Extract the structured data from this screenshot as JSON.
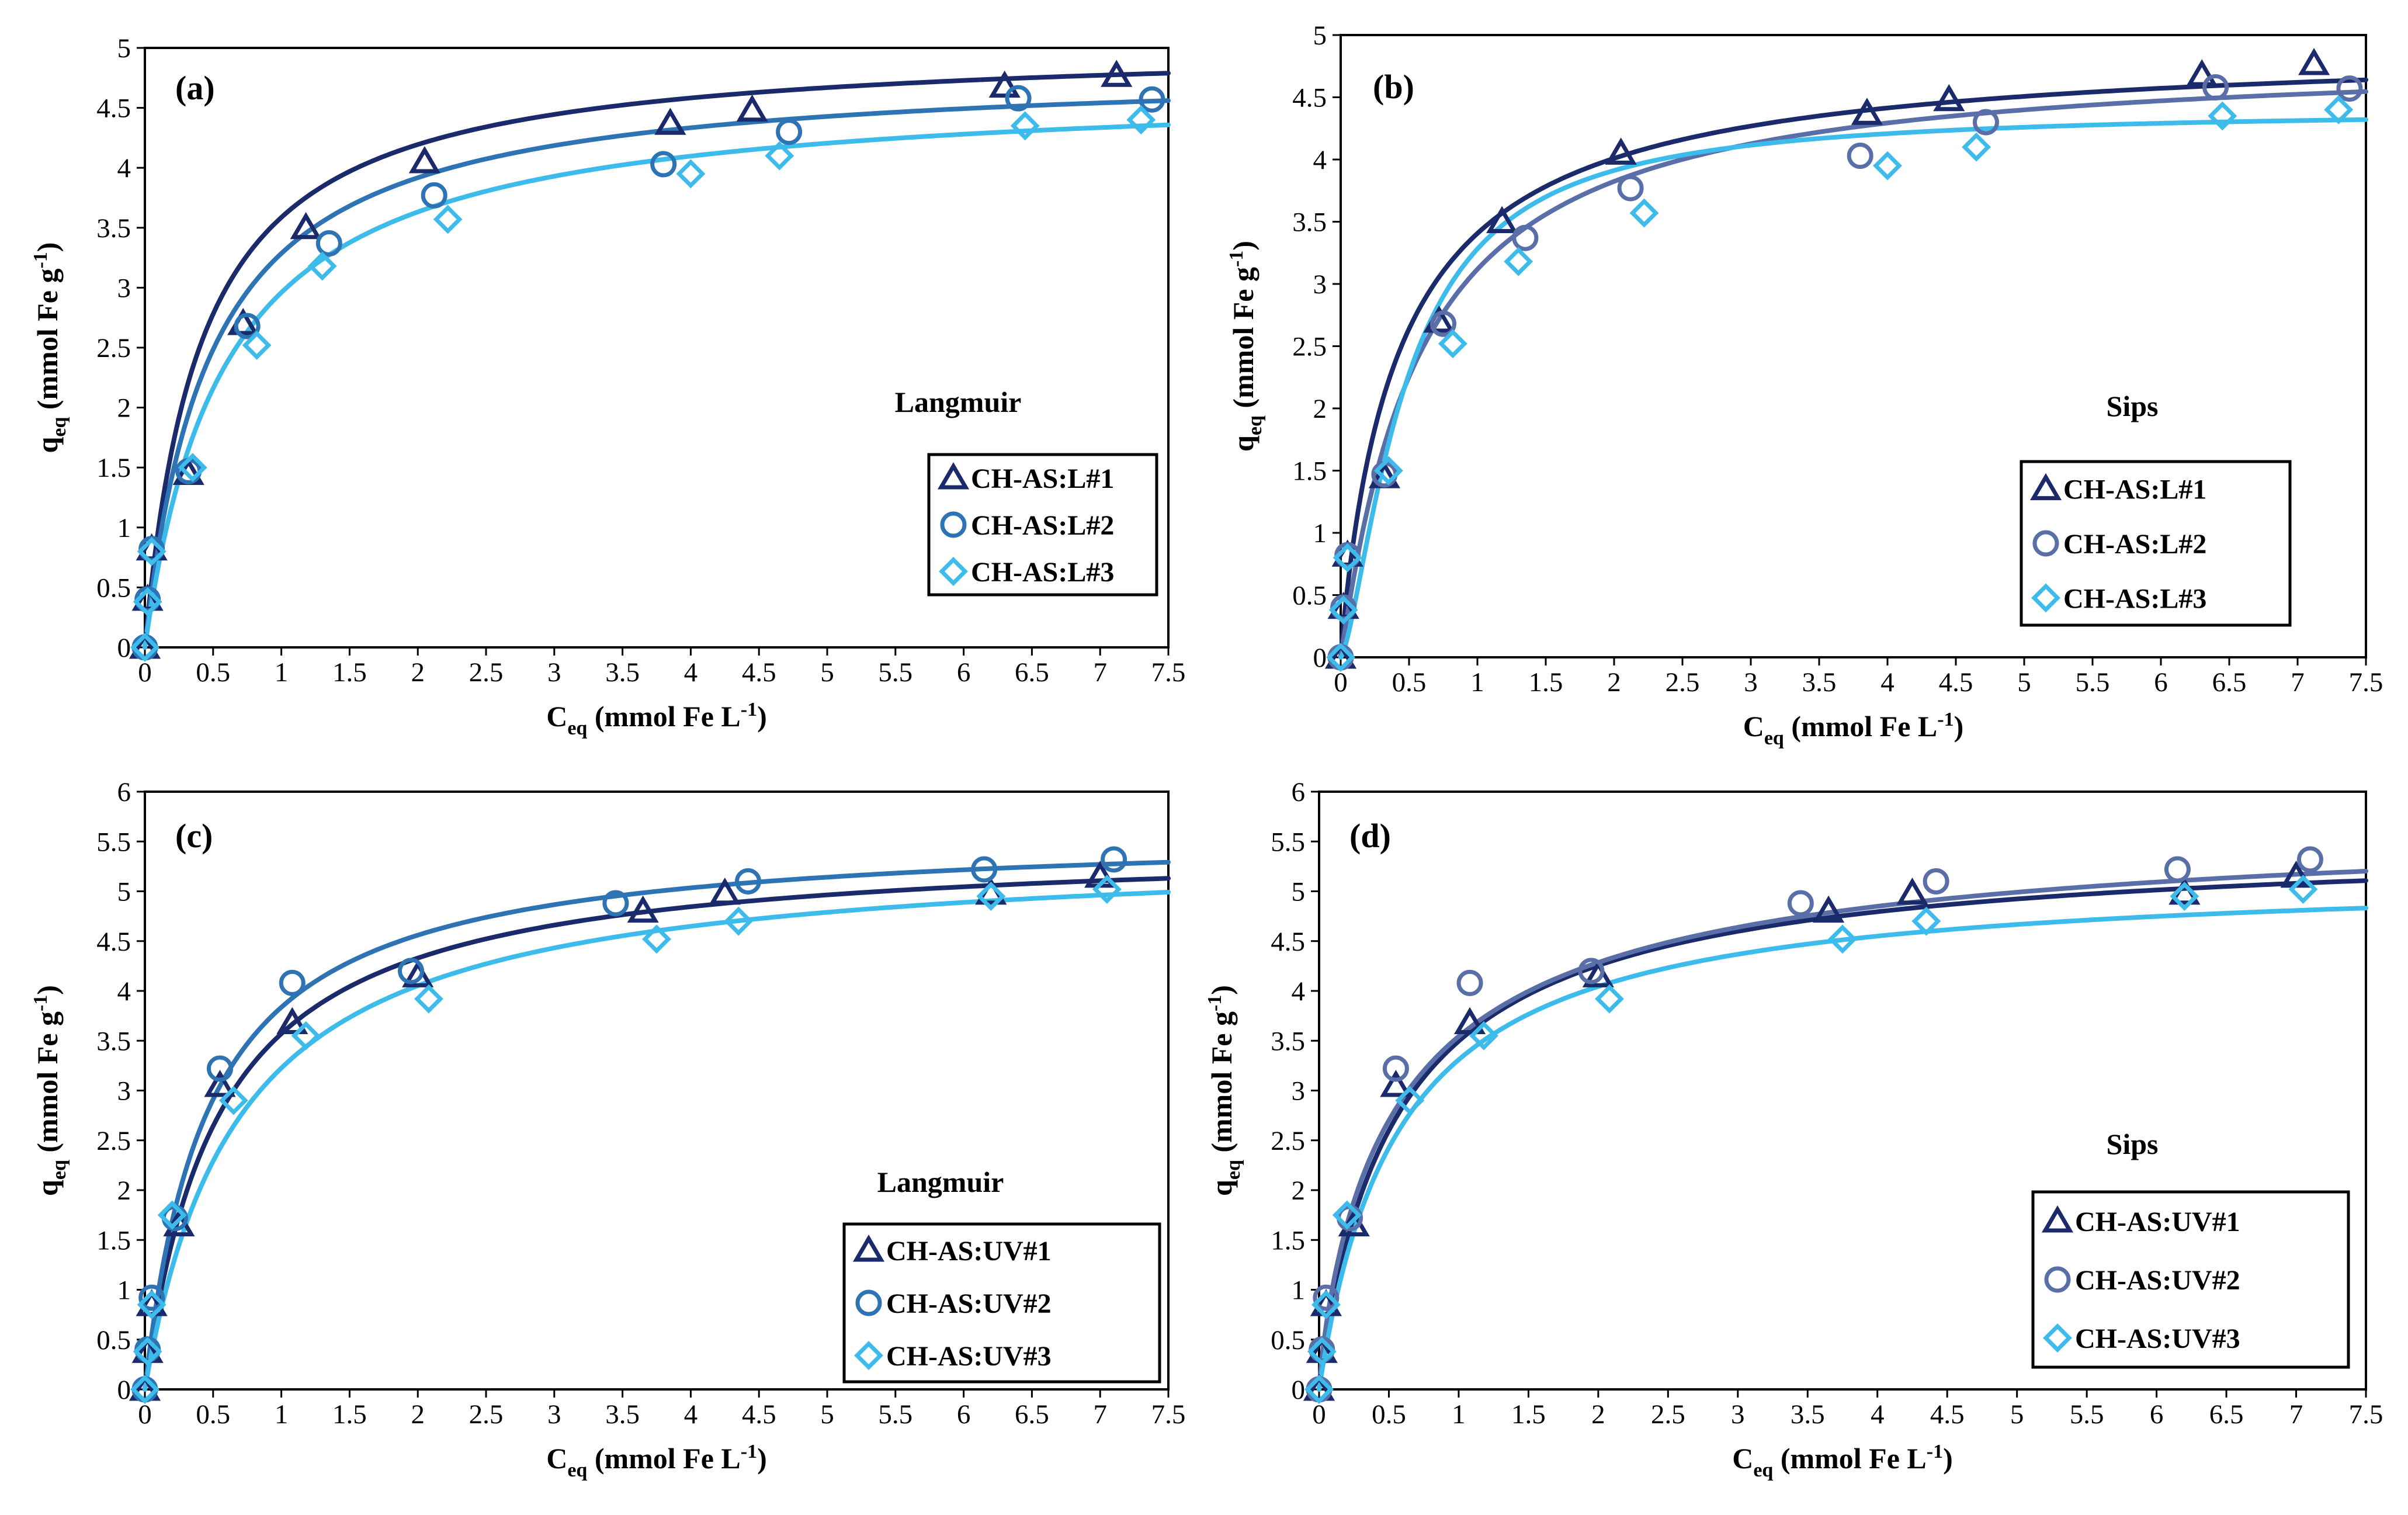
{
  "figure": {
    "colors": {
      "series1": "#1b2a6b",
      "series2": "#2e74b5",
      "series3": "#3dbcec",
      "axis": "#000000",
      "box": "#000000"
    }
  },
  "chart_data": [
    {
      "type": "scatter",
      "panel_label": "(a)",
      "model": "Langmuir",
      "title": "",
      "xlabel": "Ceq (mmol Fe L-1)",
      "xlabel_main": "C",
      "xlabel_sub": "eq",
      "xlabel_rest": " (mmol Fe L",
      "xlabel_sup": "-1",
      "xlabel_end": ")",
      "ylabel": "qeq (mmol Fe g-1)",
      "ylabel_main": "q",
      "ylabel_sub": "eq",
      "ylabel_rest": " (mmol Fe  g",
      "ylabel_sup": "-1",
      "ylabel_end": ")",
      "xlim": [
        0,
        7.5
      ],
      "ylim": [
        0,
        5
      ],
      "xticks": [
        0,
        0.5,
        1,
        1.5,
        2,
        2.5,
        3,
        3.5,
        4,
        4.5,
        5,
        5.5,
        6,
        6.5,
        7,
        7.5
      ],
      "yticks": [
        0,
        0.5,
        1,
        1.5,
        2,
        2.5,
        3,
        3.5,
        4,
        4.5,
        5
      ],
      "legend_position": "right",
      "series": [
        {
          "name": "CH-AS:L#1",
          "marker": "triangle",
          "color": "#1b2a6b",
          "x": [
            0,
            0.02,
            0.05,
            0.32,
            0.72,
            1.18,
            2.05,
            3.85,
            4.45,
            6.3,
            7.12
          ],
          "y": [
            0,
            0.4,
            0.82,
            1.45,
            2.7,
            3.5,
            4.05,
            4.37,
            4.48,
            4.68,
            4.77
          ],
          "fit": {
            "model": "langmuir",
            "qmax": 5.05,
            "K": 2.45
          }
        },
        {
          "name": "CH-AS:L#2",
          "marker": "circle",
          "color": "#2e74b5",
          "x": [
            0,
            0.02,
            0.05,
            0.32,
            0.75,
            1.35,
            2.12,
            3.8,
            4.72,
            6.4,
            7.38
          ],
          "y": [
            0,
            0.4,
            0.82,
            1.47,
            2.68,
            3.37,
            3.77,
            4.03,
            4.3,
            4.58,
            4.57
          ],
          "fit": {
            "model": "langmuir",
            "qmax": 4.85,
            "K": 2.1
          }
        },
        {
          "name": "CH-AS:L#3",
          "marker": "diamond",
          "color": "#3dbcec",
          "x": [
            0,
            0.02,
            0.05,
            0.35,
            0.82,
            1.3,
            2.22,
            4.0,
            4.65,
            6.45,
            7.3
          ],
          "y": [
            0,
            0.38,
            0.8,
            1.5,
            2.52,
            3.18,
            3.57,
            3.95,
            4.1,
            4.35,
            4.4
          ],
          "fit": {
            "model": "langmuir",
            "qmax": 4.7,
            "K": 1.7
          }
        }
      ]
    },
    {
      "type": "scatter",
      "panel_label": "(b)",
      "model": "Sips",
      "title": "",
      "xlabel": "Ceq (mmol Fe L-1)",
      "xlabel_main": "C",
      "xlabel_sub": "eq",
      "xlabel_rest": " (mmol Fe L",
      "xlabel_sup": "-1",
      "xlabel_end": ")",
      "ylabel": "qeq (mmol Fe g-1)",
      "ylabel_main": "q",
      "ylabel_sub": "eq",
      "ylabel_rest": " (mmol Fe  g",
      "ylabel_sup": "-1",
      "ylabel_end": ")",
      "xlim": [
        0,
        7.5
      ],
      "ylim": [
        0,
        5
      ],
      "xticks": [
        0,
        0.5,
        1,
        1.5,
        2,
        2.5,
        3,
        3.5,
        4,
        4.5,
        5,
        5.5,
        6,
        6.5,
        7,
        7.5
      ],
      "yticks": [
        0,
        0.5,
        1,
        1.5,
        2,
        2.5,
        3,
        3.5,
        4,
        4.5,
        5
      ],
      "legend_position": "right",
      "series": [
        {
          "name": "CH-AS:L#1",
          "marker": "triangle",
          "color": "#1b2a6b",
          "x": [
            0,
            0.02,
            0.05,
            0.32,
            0.72,
            1.18,
            2.05,
            3.85,
            4.45,
            6.3,
            7.12
          ],
          "y": [
            0,
            0.4,
            0.82,
            1.45,
            2.7,
            3.5,
            4.05,
            4.37,
            4.48,
            4.68,
            4.77
          ],
          "fit": {
            "model": "sips",
            "qmax": 4.95,
            "K": 2.3,
            "n": 0.95
          }
        },
        {
          "name": "CH-AS:L#2",
          "marker": "circle",
          "color": "#5a6fa8",
          "x": [
            0,
            0.02,
            0.05,
            0.32,
            0.75,
            1.35,
            2.12,
            3.8,
            4.72,
            6.4,
            7.38
          ],
          "y": [
            0,
            0.4,
            0.82,
            1.47,
            2.68,
            3.37,
            3.77,
            4.03,
            4.3,
            4.58,
            4.57
          ],
          "fit": {
            "model": "sips",
            "qmax": 4.85,
            "K": 1.75,
            "n": 1.05
          }
        },
        {
          "name": "CH-AS:L#3",
          "marker": "diamond",
          "color": "#3dbcec",
          "x": [
            0,
            0.02,
            0.05,
            0.35,
            0.82,
            1.3,
            2.22,
            4.0,
            4.65,
            6.45,
            7.3
          ],
          "y": [
            0,
            0.38,
            0.8,
            1.5,
            2.52,
            3.18,
            3.57,
            3.95,
            4.1,
            4.35,
            4.4
          ],
          "fit": {
            "model": "sips",
            "qmax": 4.4,
            "K": 2.1,
            "n": 1.45
          }
        }
      ]
    },
    {
      "type": "scatter",
      "panel_label": "(c)",
      "model": "Langmuir",
      "title": "",
      "xlabel": "Ceq (mmol Fe L-1)",
      "xlabel_main": "C",
      "xlabel_sub": "eq",
      "xlabel_rest": " (mmol Fe L",
      "xlabel_sup": "-1",
      "xlabel_end": ")",
      "ylabel": "qeq (mmol Fe g-1)",
      "ylabel_main": "q",
      "ylabel_sub": "eq",
      "ylabel_rest": " (mmol Fe  g",
      "ylabel_sup": "-1",
      "ylabel_end": ")",
      "xlim": [
        0,
        7.5
      ],
      "ylim": [
        0,
        6
      ],
      "xticks": [
        0,
        0.5,
        1,
        1.5,
        2,
        2.5,
        3,
        3.5,
        4,
        4.5,
        5,
        5.5,
        6,
        6.5,
        7,
        7.5
      ],
      "yticks": [
        0,
        0.5,
        1,
        1.5,
        2,
        2.5,
        3,
        3.5,
        4,
        4.5,
        5,
        5.5,
        6
      ],
      "legend_position": "bottom-right",
      "series": [
        {
          "name": "CH-AS:UV#1",
          "marker": "triangle",
          "color": "#1b2a6b",
          "x": [
            0,
            0.02,
            0.05,
            0.25,
            0.55,
            1.08,
            2.0,
            3.65,
            4.25,
            6.2,
            7.0
          ],
          "y": [
            0,
            0.38,
            0.85,
            1.65,
            3.05,
            3.68,
            4.15,
            4.8,
            4.98,
            4.98,
            5.15
          ],
          "fit": {
            "model": "langmuir",
            "qmax": 5.5,
            "K": 1.85
          }
        },
        {
          "name": "CH-AS:UV#2",
          "marker": "circle",
          "color": "#2e74b5",
          "x": [
            0,
            0.02,
            0.05,
            0.22,
            0.55,
            1.08,
            1.95,
            3.45,
            4.42,
            6.15,
            7.1
          ],
          "y": [
            0,
            0.4,
            0.92,
            1.72,
            3.22,
            4.08,
            4.2,
            4.88,
            5.1,
            5.22,
            5.32
          ],
          "fit": {
            "model": "langmuir",
            "qmax": 5.62,
            "K": 2.15
          }
        },
        {
          "name": "CH-AS:UV#3",
          "marker": "diamond",
          "color": "#3dbcec",
          "x": [
            0,
            0.02,
            0.05,
            0.2,
            0.65,
            1.18,
            2.08,
            3.75,
            4.35,
            6.2,
            7.05
          ],
          "y": [
            0,
            0.38,
            0.85,
            1.75,
            2.9,
            3.55,
            3.92,
            4.52,
            4.7,
            4.95,
            5.02
          ],
          "fit": {
            "model": "langmuir",
            "qmax": 5.45,
            "K": 1.45
          }
        }
      ]
    },
    {
      "type": "scatter",
      "panel_label": "(d)",
      "model": "Sips",
      "title": "",
      "xlabel": "Ceq (mmol Fe L-1)",
      "xlabel_main": "C",
      "xlabel_sub": "eq",
      "xlabel_rest": " (mmol Fe L",
      "xlabel_sup": "-1",
      "xlabel_end": ")",
      "ylabel": "qeq (mmol Fe g-1)",
      "ylabel_main": "q",
      "ylabel_sub": "eq",
      "ylabel_rest": " (mmol Fe  g",
      "ylabel_sup": "-1",
      "ylabel_end": ")",
      "xlim": [
        0,
        7.5
      ],
      "ylim": [
        0,
        6
      ],
      "xticks": [
        0,
        0.5,
        1,
        1.5,
        2,
        2.5,
        3,
        3.5,
        4,
        4.5,
        5,
        5.5,
        6,
        6.5,
        7,
        7.5
      ],
      "yticks": [
        0,
        0.5,
        1,
        1.5,
        2,
        2.5,
        3,
        3.5,
        4,
        4.5,
        5,
        5.5,
        6
      ],
      "legend_position": "bottom-right",
      "series": [
        {
          "name": "CH-AS:UV#1",
          "marker": "triangle",
          "color": "#1b2a6b",
          "x": [
            0,
            0.02,
            0.05,
            0.25,
            0.55,
            1.08,
            2.0,
            3.65,
            4.25,
            6.2,
            7.0
          ],
          "y": [
            0,
            0.38,
            0.85,
            1.65,
            3.05,
            3.68,
            4.15,
            4.8,
            4.98,
            4.98,
            5.15
          ],
          "fit": {
            "model": "sips",
            "qmax": 5.55,
            "K": 1.75,
            "n": 0.95
          }
        },
        {
          "name": "CH-AS:UV#2",
          "marker": "circle",
          "color": "#5a6fa8",
          "x": [
            0,
            0.02,
            0.05,
            0.22,
            0.55,
            1.08,
            1.95,
            3.45,
            4.42,
            6.15,
            7.1
          ],
          "y": [
            0,
            0.4,
            0.92,
            1.72,
            3.22,
            4.08,
            4.2,
            4.88,
            5.1,
            5.22,
            5.32
          ],
          "fit": {
            "model": "sips",
            "qmax": 5.8,
            "K": 1.7,
            "n": 0.85
          }
        },
        {
          "name": "CH-AS:UV#3",
          "marker": "diamond",
          "color": "#3dbcec",
          "x": [
            0,
            0.02,
            0.05,
            0.2,
            0.65,
            1.18,
            2.08,
            3.75,
            4.35,
            6.2,
            7.05
          ],
          "y": [
            0,
            0.38,
            0.85,
            1.75,
            2.9,
            3.55,
            3.92,
            4.52,
            4.7,
            4.95,
            5.02
          ],
          "fit": {
            "model": "sips",
            "qmax": 5.2,
            "K": 1.75,
            "n": 1.0
          }
        }
      ]
    }
  ]
}
